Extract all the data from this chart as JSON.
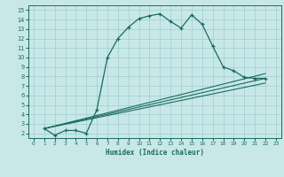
{
  "line1_x": [
    1,
    2,
    3,
    4,
    5,
    6,
    7,
    8,
    9,
    10,
    11,
    12,
    13,
    14,
    15,
    16,
    17,
    18,
    19,
    20,
    21,
    22
  ],
  "line1_y": [
    2.5,
    1.8,
    2.3,
    2.3,
    2.0,
    4.5,
    10.0,
    12.0,
    13.2,
    14.1,
    14.4,
    14.6,
    13.8,
    13.1,
    14.5,
    13.5,
    11.2,
    9.0,
    8.6,
    7.9,
    7.8,
    7.8
  ],
  "line2_x": [
    1,
    22
  ],
  "line2_y": [
    2.5,
    8.3
  ],
  "line3_x": [
    1,
    22
  ],
  "line3_y": [
    2.5,
    7.8
  ],
  "line4_x": [
    1,
    22
  ],
  "line4_y": [
    2.5,
    7.3
  ],
  "color": "#1a6b5e",
  "bg_color": "#c8e8e8",
  "grid_color": "#9ecece",
  "xlabel": "Humidex (Indice chaleur)",
  "xlim": [
    -0.5,
    23.5
  ],
  "ylim": [
    1.5,
    15.5
  ],
  "xticks": [
    0,
    1,
    2,
    3,
    4,
    5,
    6,
    7,
    8,
    9,
    10,
    11,
    12,
    13,
    14,
    15,
    16,
    17,
    18,
    19,
    20,
    21,
    22,
    23
  ],
  "yticks": [
    2,
    3,
    4,
    5,
    6,
    7,
    8,
    9,
    10,
    11,
    12,
    13,
    14,
    15
  ]
}
